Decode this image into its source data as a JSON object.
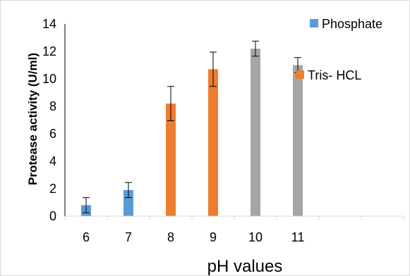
{
  "chart_data": {
    "type": "bar",
    "xlabel": "pH values",
    "ylabel": "Protease activity (U/ml)",
    "ylim": [
      0,
      14
    ],
    "yticks": [
      0,
      2,
      4,
      6,
      8,
      10,
      12,
      14
    ],
    "categories": [
      "6",
      "7",
      "8",
      "9",
      "10",
      "11",
      "",
      ""
    ],
    "grid": false,
    "legend_entries_position": "right",
    "series": [
      {
        "name": "Phosphate",
        "color": "#5b9bd5",
        "points": [
          {
            "category": "6",
            "value": 0.8,
            "error": 0.55
          },
          {
            "category": "7",
            "value": 1.9,
            "error": 0.55
          }
        ]
      },
      {
        "name": "Tris- HCL",
        "color": "#ed7d31",
        "points": [
          {
            "category": "8",
            "value": 8.2,
            "error": 1.25
          },
          {
            "category": "9",
            "value": 10.7,
            "error": 1.25
          }
        ]
      },
      {
        "name": "",
        "color": "#a5a5a5",
        "points": [
          {
            "category": "10",
            "value": 12.2,
            "error": 0.55
          },
          {
            "category": "11",
            "value": 11.0,
            "error": 0.55
          }
        ]
      }
    ]
  }
}
